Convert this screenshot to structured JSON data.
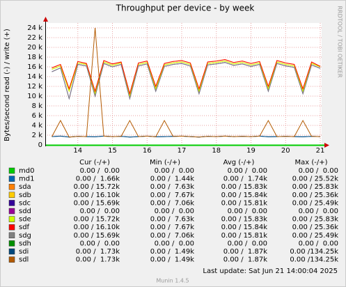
{
  "chart_data": {
    "type": "line",
    "title": "Throughput per device - by week",
    "y_label": "Bytes/second read (-) / write (+)",
    "side_label": "RRDTOOL / TOBI OETIKER",
    "x": [
      13.25,
      13.5,
      13.75,
      14,
      14.25,
      14.5,
      14.75,
      15,
      15.25,
      15.5,
      15.75,
      16,
      16.25,
      16.5,
      16.75,
      17,
      17.25,
      17.5,
      17.75,
      18,
      18.25,
      18.5,
      18.75,
      19,
      19.25,
      19.5,
      19.75,
      20,
      20.25,
      20.5,
      20.75,
      21
    ],
    "xlim": [
      13.06,
      21.04
    ],
    "xticks": [
      14,
      15,
      16,
      17,
      18,
      19,
      20,
      21
    ],
    "ylim": [
      0,
      25000
    ],
    "yticks": [
      0,
      {
        "value": 2000,
        "label": "2 k"
      },
      {
        "value": 4000,
        "label": "4 k"
      },
      {
        "value": 6000,
        "label": "6 k"
      },
      {
        "value": 8000,
        "label": "8 k"
      },
      {
        "value": 10000,
        "label": "10 k"
      },
      {
        "value": 12000,
        "label": "12 k"
      },
      {
        "value": 14000,
        "label": "14 k"
      },
      {
        "value": 16000,
        "label": "16 k"
      },
      {
        "value": 18000,
        "label": "18 k"
      },
      {
        "value": 20000,
        "label": "20 k"
      },
      {
        "value": 22000,
        "label": "22 k"
      },
      {
        "value": 24000,
        "label": "24 k"
      }
    ],
    "grid": true,
    "legend_header": [
      "Cur (-/+)",
      "Min (-/+)",
      "Avg (-/+)",
      "Max (-/+)"
    ],
    "series": [
      {
        "name": "md0",
        "color": "#00cc00",
        "cur": "0.00 /  0.00",
        "min": "0.00 /  0.00",
        "avg": "0.00 /  0.00",
        "max": "0.00 /  0.00",
        "values": [
          0,
          0,
          0,
          0,
          0,
          0,
          0,
          0,
          0,
          0,
          0,
          0,
          0,
          0,
          0,
          0,
          0,
          0,
          0,
          0,
          0,
          0,
          0,
          0,
          0,
          0,
          0,
          0,
          0,
          0,
          0,
          0
        ]
      },
      {
        "name": "md1",
        "color": "#0066b3",
        "cur": "0.00 /  1.66k",
        "min": "0.00 /  1.44k",
        "avg": "0.00 /  1.74k",
        "max": "0.00 / 25.52k",
        "values": [
          1700,
          1800,
          1600,
          1750,
          1700,
          1650,
          1800,
          1700,
          1750,
          1600,
          1700,
          1800,
          1650,
          1700,
          1750,
          1800,
          1700,
          1600,
          1750,
          1700,
          1800,
          1700,
          1750,
          1700,
          1800,
          1650,
          1700,
          1750,
          1700,
          1650,
          1750,
          1700
        ]
      },
      {
        "name": "sda",
        "color": "#ff8000",
        "cur": "0.00 / 15.72k",
        "min": "0.00 /  7.63k",
        "avg": "0.00 / 15.83k",
        "max": "0.00 / 25.83k",
        "values": [
          15500,
          16200,
          11000,
          16800,
          16500,
          10500,
          17000,
          16300,
          16800,
          10000,
          16500,
          16900,
          11500,
          16400,
          16800,
          17000,
          16500,
          11000,
          16700,
          16900,
          17200,
          16600,
          16900,
          16400,
          16800,
          11500,
          17000,
          16500,
          16200,
          11000,
          16700,
          16000
        ]
      },
      {
        "name": "sdb",
        "color": "#ffcc00",
        "cur": "0.00 / 16.10k",
        "min": "0.00 /  7.67k",
        "avg": "0.00 / 15.84k",
        "max": "0.00 / 25.36k",
        "values": [
          15800,
          16500,
          11500,
          17100,
          16700,
          11000,
          17300,
          16600,
          17000,
          10500,
          16800,
          17200,
          12000,
          16700,
          17100,
          17300,
          16800,
          11500,
          17000,
          17200,
          17500,
          16900,
          17200,
          16700,
          17100,
          12000,
          17300,
          16800,
          16500,
          11500,
          17000,
          16100
        ]
      },
      {
        "name": "sdc",
        "color": "#330099",
        "cur": "0.00 / 15.69k",
        "min": "0.00 /  7.06k",
        "avg": "0.00 / 15.81k",
        "max": "0.00 / 25.49k",
        "values": [
          15000,
          15800,
          9500,
          16500,
          16200,
          10000,
          16700,
          16000,
          16500,
          9500,
          16200,
          16600,
          11000,
          16100,
          16500,
          16700,
          16200,
          10500,
          16400,
          16600,
          16900,
          16300,
          16600,
          16100,
          16500,
          11000,
          16700,
          16200,
          15900,
          10500,
          16400,
          15700
        ]
      },
      {
        "name": "sdd",
        "color": "#990099",
        "cur": "0.00 /  0.00",
        "min": "0.00 /  0.00",
        "avg": "0.00 /  0.00",
        "max": "0.00 /  0.00",
        "values": [
          0,
          0,
          0,
          0,
          0,
          0,
          0,
          0,
          0,
          0,
          0,
          0,
          0,
          0,
          0,
          0,
          0,
          0,
          0,
          0,
          0,
          0,
          0,
          0,
          0,
          0,
          0,
          0,
          0,
          0,
          0,
          0
        ]
      },
      {
        "name": "sde",
        "color": "#ccff00",
        "cur": "0.00 / 15.72k",
        "min": "0.00 /  7.63k",
        "avg": "0.00 / 15.83k",
        "max": "0.00 / 25.83k",
        "values": [
          15500,
          16200,
          11000,
          16800,
          16500,
          10500,
          17000,
          16300,
          16800,
          10000,
          16500,
          16900,
          11500,
          16400,
          16800,
          17000,
          16500,
          11000,
          16700,
          16900,
          17200,
          16600,
          16900,
          16400,
          16800,
          11500,
          17000,
          16500,
          16200,
          11000,
          16700,
          16000
        ]
      },
      {
        "name": "sdf",
        "color": "#ff0000",
        "cur": "0.00 / 16.10k",
        "min": "0.00 /  7.67k",
        "avg": "0.00 / 15.84k",
        "max": "0.00 / 25.36k",
        "values": [
          15800,
          16500,
          11500,
          17100,
          16700,
          11000,
          17300,
          16600,
          17000,
          10500,
          16800,
          17200,
          12000,
          16700,
          17100,
          17300,
          16800,
          11500,
          17000,
          17200,
          17500,
          16900,
          17200,
          16700,
          17100,
          12000,
          17300,
          16800,
          16500,
          11500,
          17000,
          16100
        ]
      },
      {
        "name": "sdg",
        "color": "#808080",
        "cur": "0.00 / 15.69k",
        "min": "0.00 /  7.06k",
        "avg": "0.00 / 15.81k",
        "max": "0.00 / 25.49k",
        "values": [
          15000,
          15800,
          9500,
          16500,
          16200,
          10000,
          16700,
          16000,
          16500,
          9500,
          16200,
          16600,
          11000,
          16100,
          16500,
          16700,
          16200,
          10500,
          16400,
          16600,
          16900,
          16300,
          16600,
          16100,
          16500,
          11000,
          16700,
          16200,
          15900,
          10500,
          16400,
          15700
        ]
      },
      {
        "name": "sdh",
        "color": "#008f00",
        "cur": "0.00 /  0.00",
        "min": "0.00 /  0.00",
        "avg": "0.00 /  0.00",
        "max": "0.00 /  0.00",
        "values": [
          0,
          0,
          0,
          0,
          0,
          0,
          0,
          0,
          0,
          0,
          0,
          0,
          0,
          0,
          0,
          0,
          0,
          0,
          0,
          0,
          0,
          0,
          0,
          0,
          0,
          0,
          0,
          0,
          0,
          0,
          0,
          0
        ]
      },
      {
        "name": "sdi",
        "color": "#00487d",
        "cur": "0.00 /  1.73k",
        "min": "0.00 /  1.49k",
        "avg": "0.00 /  1.87k",
        "max": "0.00 /134.25k",
        "values": [
          1700,
          1800,
          1600,
          1750,
          1700,
          1650,
          1800,
          1700,
          1750,
          1600,
          1700,
          1800,
          1650,
          1700,
          1750,
          1800,
          1700,
          1600,
          1750,
          1700,
          1800,
          1700,
          1750,
          1700,
          1800,
          1650,
          1700,
          1750,
          1700,
          1650,
          1750,
          1700
        ]
      },
      {
        "name": "sdl",
        "color": "#b35a00",
        "cur": "0.00 /  1.73k",
        "min": "0.00 /  1.49k",
        "avg": "0.00 /  1.87k",
        "max": "0.00 /134.25k",
        "values": [
          1700,
          5000,
          1600,
          1750,
          1700,
          24000,
          1800,
          1700,
          1750,
          5000,
          1700,
          1800,
          1650,
          5000,
          1750,
          1800,
          1700,
          1600,
          1750,
          1700,
          1800,
          1700,
          1750,
          1700,
          1800,
          5000,
          1700,
          1750,
          1700,
          5000,
          1750,
          1700
        ]
      }
    ],
    "last_update": "Last update:  Sat Jun 21 14:00:04 2025",
    "footer": "Munin 1.4.5"
  }
}
